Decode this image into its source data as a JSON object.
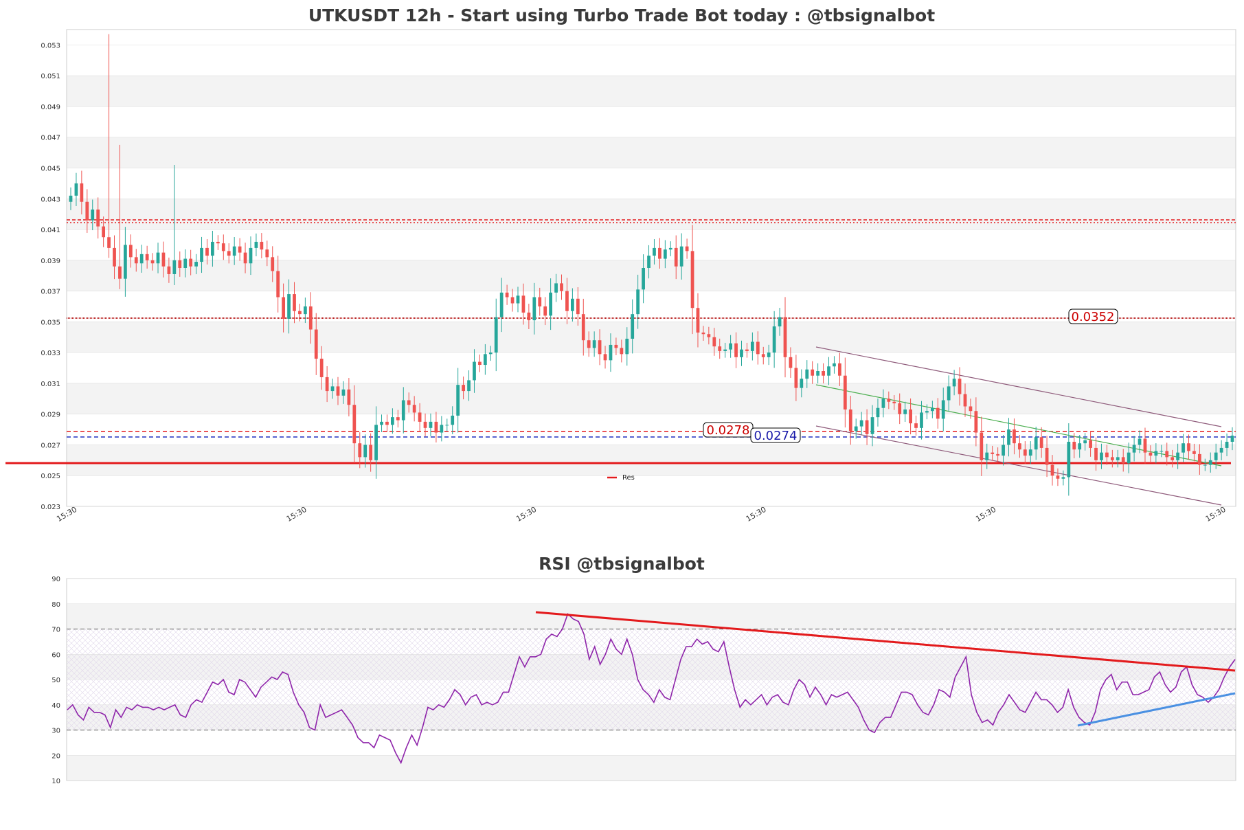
{
  "chart_data": [
    {
      "type": "candlestick",
      "title": "UTKUSDT 12h - Start using Turbo Trade Bot today : @tbsignalbot",
      "ylim": [
        0.023,
        0.054
      ],
      "y_ticks": [
        "0.023",
        "0.025",
        "0.027",
        "0.029",
        "0.031",
        "0.033",
        "0.035",
        "0.037",
        "0.039",
        "0.041",
        "0.043",
        "0.045",
        "0.047",
        "0.049",
        "0.051",
        "0.053"
      ],
      "x_ticks": [
        "15:30",
        "15:30",
        "15:30",
        "15:30",
        "15:30",
        "15:30"
      ],
      "grid": true,
      "legend": {
        "position": "bottom-center",
        "entries": [
          {
            "label": "Res",
            "color": "#e31a1c"
          }
        ]
      },
      "closes": [
        0.0432,
        0.044,
        0.0428,
        0.0416,
        0.0423,
        0.0412,
        0.0405,
        0.0398,
        0.0386,
        0.0378,
        0.04,
        0.0392,
        0.0388,
        0.0394,
        0.039,
        0.0388,
        0.0395,
        0.0386,
        0.0381,
        0.039,
        0.0385,
        0.0391,
        0.0386,
        0.0389,
        0.0398,
        0.0393,
        0.0402,
        0.0401,
        0.0396,
        0.0393,
        0.0399,
        0.0395,
        0.0388,
        0.0398,
        0.0402,
        0.0397,
        0.0392,
        0.0383,
        0.0366,
        0.0352,
        0.0368,
        0.0357,
        0.0355,
        0.036,
        0.0345,
        0.0326,
        0.0314,
        0.0305,
        0.0308,
        0.0302,
        0.0306,
        0.0296,
        0.0271,
        0.0262,
        0.027,
        0.026,
        0.0283,
        0.0285,
        0.0283,
        0.0288,
        0.0286,
        0.0299,
        0.0296,
        0.0291,
        0.0285,
        0.0281,
        0.0285,
        0.0278,
        0.0283,
        0.0283,
        0.0289,
        0.0309,
        0.0305,
        0.0312,
        0.0324,
        0.0322,
        0.0329,
        0.033,
        0.0353,
        0.0369,
        0.0366,
        0.0362,
        0.0367,
        0.0356,
        0.0351,
        0.0366,
        0.036,
        0.0354,
        0.0369,
        0.0375,
        0.037,
        0.0357,
        0.0365,
        0.0355,
        0.0338,
        0.0333,
        0.0338,
        0.0329,
        0.0325,
        0.0335,
        0.0333,
        0.0329,
        0.0339,
        0.0355,
        0.0371,
        0.0385,
        0.0393,
        0.0398,
        0.0391,
        0.0397,
        0.0398,
        0.0386,
        0.0399,
        0.0396,
        0.0359,
        0.0343,
        0.0342,
        0.034,
        0.0334,
        0.0331,
        0.0332,
        0.0336,
        0.0327,
        0.0332,
        0.0331,
        0.0337,
        0.0329,
        0.0327,
        0.033,
        0.0347,
        0.0353,
        0.0327,
        0.032,
        0.0307,
        0.0313,
        0.0319,
        0.0315,
        0.0318,
        0.0315,
        0.0321,
        0.0323,
        0.0315,
        0.0293,
        0.0279,
        0.0282,
        0.0286,
        0.0277,
        0.0288,
        0.0294,
        0.03,
        0.0298,
        0.0297,
        0.029,
        0.0293,
        0.0284,
        0.0281,
        0.0291,
        0.0292,
        0.0294,
        0.0287,
        0.0299,
        0.0308,
        0.0313,
        0.0303,
        0.0295,
        0.0292,
        0.0278,
        0.026,
        0.0265,
        0.0264,
        0.0263,
        0.027,
        0.028,
        0.0271,
        0.0267,
        0.0263,
        0.0267,
        0.0275,
        0.0268,
        0.0257,
        0.025,
        0.0248,
        0.0249,
        0.0272,
        0.0267,
        0.0271,
        0.0273,
        0.0268,
        0.026,
        0.0265,
        0.0262,
        0.026,
        0.0262,
        0.0258,
        0.0265,
        0.027,
        0.0274,
        0.0265,
        0.0263,
        0.0266,
        0.0266,
        0.0262,
        0.026,
        0.0265,
        0.0271,
        0.0266,
        0.0264,
        0.0257,
        0.0257,
        0.026,
        0.0265,
        0.0268,
        0.0272,
        0.0276
      ]
    },
    {
      "type": "line",
      "title": "RSI @tbsignalbot",
      "ylim": [
        10,
        90
      ],
      "y_ticks": [
        "10",
        "20",
        "30",
        "40",
        "50",
        "60",
        "70",
        "80",
        "90"
      ],
      "reference_lines": [
        30,
        70
      ],
      "rsi": [
        38,
        40,
        36,
        34,
        39,
        37,
        37,
        36,
        31,
        38,
        35,
        39,
        38,
        40,
        39,
        39,
        38,
        39,
        38,
        39,
        40,
        36,
        35,
        40,
        42,
        41,
        45,
        49,
        48,
        50,
        45,
        44,
        50,
        49,
        46,
        43,
        47,
        49,
        51,
        50,
        53,
        52,
        45,
        40,
        37,
        31,
        30,
        40,
        35,
        36,
        37,
        38,
        35,
        32,
        27,
        25,
        25,
        23,
        28,
        27,
        26,
        21,
        17,
        23,
        28,
        24,
        31,
        39,
        38,
        40,
        39,
        42,
        46,
        44,
        40,
        43,
        44,
        40,
        41,
        40,
        41,
        45,
        45,
        52,
        59,
        55,
        59,
        59,
        60,
        66,
        68,
        67,
        70,
        76,
        74,
        73,
        68,
        58,
        63,
        56,
        60,
        66,
        62,
        60,
        66,
        60,
        50,
        46,
        44,
        41,
        46,
        43,
        42,
        50,
        58,
        63,
        63,
        66,
        64,
        65,
        62,
        61,
        65,
        55,
        46,
        39,
        42,
        40,
        42,
        44,
        40,
        43,
        44,
        41,
        40,
        46,
        50,
        48,
        43,
        47,
        44,
        40,
        44,
        43,
        44,
        45,
        42,
        39,
        34,
        30,
        29,
        33,
        35,
        35,
        40,
        45,
        45,
        44,
        40,
        37,
        36,
        40,
        46,
        45,
        43,
        51,
        55,
        59,
        44,
        37,
        33,
        34,
        32,
        37,
        40,
        44,
        41,
        38,
        37,
        41,
        45,
        42,
        42,
        40,
        37,
        39,
        46,
        39,
        35,
        33,
        32,
        37,
        46,
        50,
        52,
        46,
        49,
        49,
        44,
        44,
        45,
        46,
        51,
        53,
        48,
        45,
        47,
        53,
        55,
        48,
        44,
        43,
        41,
        43,
        46,
        51,
        55,
        58
      ]
    }
  ],
  "labels": {
    "tag_0352": "0.0352",
    "tag_0278": "0.0278",
    "tag_0274": "0.0274"
  },
  "colors": {
    "up": "#26a69a",
    "down": "#ef5350",
    "support": "#e31a1c",
    "resistance_dashed": "#e31a1c",
    "blue_dashed": "#1f2fbf",
    "channel": "#8e5a7a",
    "channel_mid": "#4caf50",
    "rsi_line": "#8e24aa",
    "rsi_trend_red": "#e31a1c",
    "rsi_trend_blue": "#4a90e2",
    "band": "#f3f3f3",
    "grid": "#dddddd"
  }
}
